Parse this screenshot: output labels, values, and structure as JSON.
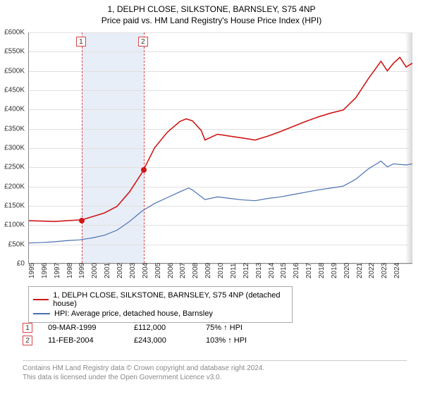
{
  "title_main": "1, DELPH CLOSE, SILKSTONE, BARNSLEY, S75 4NP",
  "title_sub": "Price paid vs. HM Land Registry's House Price Index (HPI)",
  "chart": {
    "type": "line",
    "ylim": [
      0,
      600000
    ],
    "ytick_step": 50000,
    "yformat_prefix": "£",
    "yformat_suffix": "K",
    "yformat_divisor": 1000,
    "xlim": [
      1995,
      2025.5
    ],
    "xticks": [
      1995,
      1996,
      1997,
      1998,
      1999,
      2000,
      2001,
      2002,
      2003,
      2004,
      2005,
      2006,
      2007,
      2008,
      2009,
      2010,
      2011,
      2012,
      2013,
      2014,
      2015,
      2016,
      2017,
      2018,
      2019,
      2020,
      2021,
      2022,
      2023,
      2024
    ],
    "background": "#ffffff",
    "grid_color": "#e0e0e0",
    "axis_color": "#888888",
    "shade_band": {
      "start": 1999.19,
      "end": 2004.12,
      "fill": "#e8eef7"
    },
    "vlines": [
      {
        "x": 1999.19,
        "color": "#d94545",
        "dash": true
      },
      {
        "x": 2004.12,
        "color": "#d94545",
        "dash": true
      }
    ],
    "series": [
      {
        "name": "price_paid",
        "label": "1, DELPH CLOSE, SILKSTONE, BARNSLEY, S75 4NP (detached house)",
        "color": "#d01717",
        "width": 1.6,
        "data": [
          [
            1995,
            110000
          ],
          [
            1996,
            109000
          ],
          [
            1997,
            108000
          ],
          [
            1998,
            110000
          ],
          [
            1999,
            112000
          ],
          [
            1999.19,
            112000
          ],
          [
            2000,
            120000
          ],
          [
            2001,
            130000
          ],
          [
            2002,
            147000
          ],
          [
            2003,
            185000
          ],
          [
            2004,
            235000
          ],
          [
            2004.12,
            243000
          ],
          [
            2005,
            300000
          ],
          [
            2006,
            340000
          ],
          [
            2007,
            368000
          ],
          [
            2007.5,
            375000
          ],
          [
            2008,
            370000
          ],
          [
            2008.7,
            345000
          ],
          [
            2009,
            320000
          ],
          [
            2010,
            335000
          ],
          [
            2011,
            330000
          ],
          [
            2012,
            325000
          ],
          [
            2013,
            320000
          ],
          [
            2014,
            330000
          ],
          [
            2015,
            342000
          ],
          [
            2016,
            355000
          ],
          [
            2017,
            368000
          ],
          [
            2018,
            380000
          ],
          [
            2019,
            390000
          ],
          [
            2020,
            398000
          ],
          [
            2021,
            430000
          ],
          [
            2022,
            480000
          ],
          [
            2023,
            525000
          ],
          [
            2023.5,
            500000
          ],
          [
            2024,
            520000
          ],
          [
            2024.5,
            535000
          ],
          [
            2025,
            510000
          ],
          [
            2025.5,
            520000
          ]
        ]
      },
      {
        "name": "hpi",
        "label": "HPI: Average price, detached house, Barnsley",
        "color": "#4a6fb3",
        "width": 1.2,
        "data": [
          [
            1995,
            52000
          ],
          [
            1996,
            53000
          ],
          [
            1997,
            55000
          ],
          [
            1998,
            58000
          ],
          [
            1999,
            60000
          ],
          [
            2000,
            65000
          ],
          [
            2001,
            72000
          ],
          [
            2002,
            85000
          ],
          [
            2003,
            108000
          ],
          [
            2004,
            135000
          ],
          [
            2005,
            155000
          ],
          [
            2006,
            170000
          ],
          [
            2007,
            185000
          ],
          [
            2007.7,
            195000
          ],
          [
            2008,
            190000
          ],
          [
            2009,
            165000
          ],
          [
            2010,
            172000
          ],
          [
            2011,
            168000
          ],
          [
            2012,
            164000
          ],
          [
            2013,
            162000
          ],
          [
            2014,
            168000
          ],
          [
            2015,
            172000
          ],
          [
            2016,
            178000
          ],
          [
            2017,
            184000
          ],
          [
            2018,
            190000
          ],
          [
            2019,
            195000
          ],
          [
            2020,
            200000
          ],
          [
            2021,
            218000
          ],
          [
            2022,
            245000
          ],
          [
            2023,
            265000
          ],
          [
            2023.5,
            250000
          ],
          [
            2024,
            258000
          ],
          [
            2025,
            255000
          ],
          [
            2025.5,
            258000
          ]
        ]
      }
    ],
    "sale_points": [
      {
        "x": 1999.19,
        "y": 112000,
        "color": "#d01717"
      },
      {
        "x": 2004.12,
        "y": 243000,
        "color": "#d01717"
      }
    ],
    "marker_boxes": [
      {
        "x": 1999.19,
        "label": "1",
        "border": "#d94545"
      },
      {
        "x": 2004.12,
        "label": "2",
        "border": "#d94545"
      }
    ]
  },
  "legend": {
    "items": [
      {
        "color": "#d01717",
        "label": "1, DELPH CLOSE, SILKSTONE, BARNSLEY, S75 4NP (detached house)"
      },
      {
        "color": "#4a6fb3",
        "label": "HPI: Average price, detached house, Barnsley"
      }
    ]
  },
  "sales": [
    {
      "idx": "1",
      "date": "09-MAR-1999",
      "price": "£112,000",
      "pct": "75% ↑ HPI"
    },
    {
      "idx": "2",
      "date": "11-FEB-2004",
      "price": "£243,000",
      "pct": "103% ↑ HPI"
    }
  ],
  "footer_line1": "Contains HM Land Registry data © Crown copyright and database right 2024.",
  "footer_line2": "This data is licensed under the Open Government Licence v3.0."
}
